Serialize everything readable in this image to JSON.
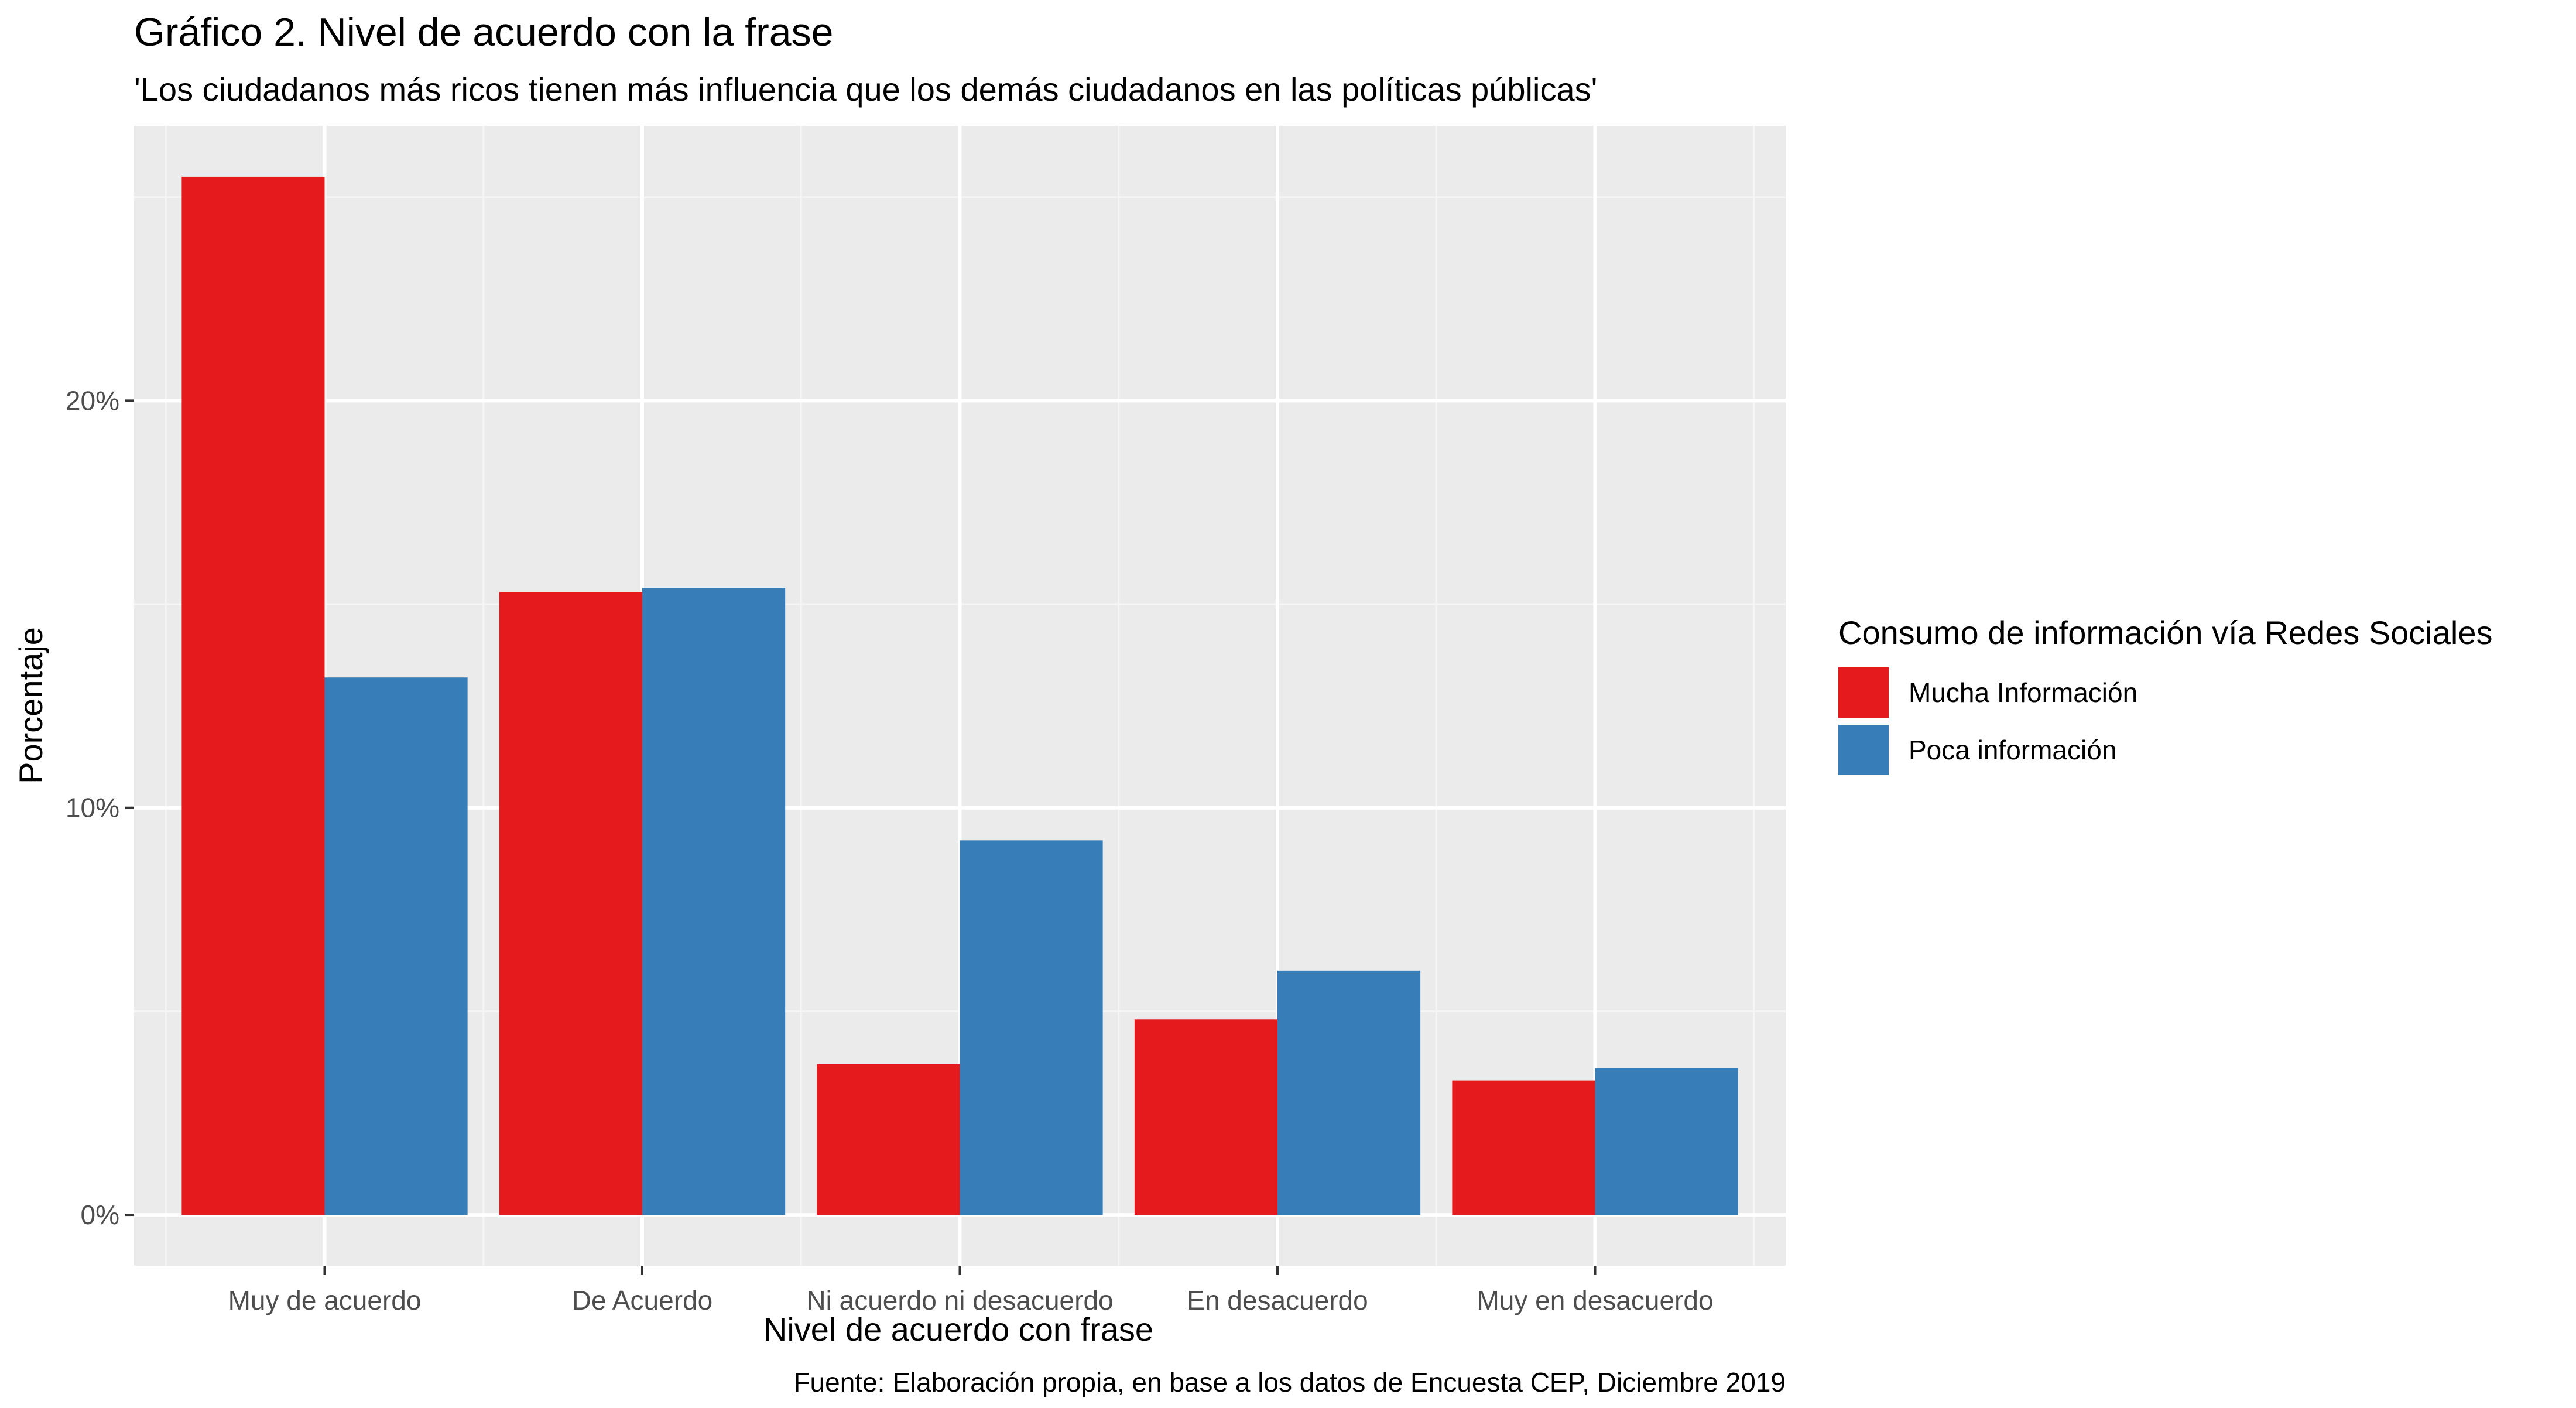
{
  "chart_data": {
    "type": "bar",
    "title": "Gráfico 2. Nivel de acuerdo con la frase",
    "subtitle": "'Los ciudadanos más ricos tienen más influencia que los demás ciudadanos en las políticas públicas'",
    "xlabel": "Nivel de acuerdo con frase",
    "ylabel": "Porcentaje",
    "caption": "Fuente: Elaboración propia, en base a los datos de Encuesta CEP, Diciembre 2019",
    "categories": [
      "Muy de acuerdo",
      "De Acuerdo",
      "Ni acuerdo ni desacuerdo",
      "En desacuerdo",
      "Muy en desacuerdo"
    ],
    "series": [
      {
        "name": "Mucha Información",
        "color": "#E41A1C",
        "values": [
          25.5,
          15.3,
          3.7,
          4.8,
          3.3
        ]
      },
      {
        "name": "Poca información",
        "color": "#377EB8",
        "values": [
          13.2,
          15.4,
          9.2,
          6.0,
          3.6
        ]
      }
    ],
    "ylim": [
      -1.25,
      26.75
    ],
    "yticks": [
      0,
      10,
      20
    ],
    "ytick_labels": [
      "0%",
      "10%",
      "20%"
    ],
    "grid": true,
    "legend": {
      "title": "Consumo de información vía Redes Sociales",
      "position": "right"
    },
    "colors": {
      "panel_background": "#EBEBEB",
      "grid_major": "#FFFFFF",
      "grid_minor": "#F5F5F5",
      "tick_text": "#4D4D4D",
      "tick_mark": "#333333"
    }
  }
}
